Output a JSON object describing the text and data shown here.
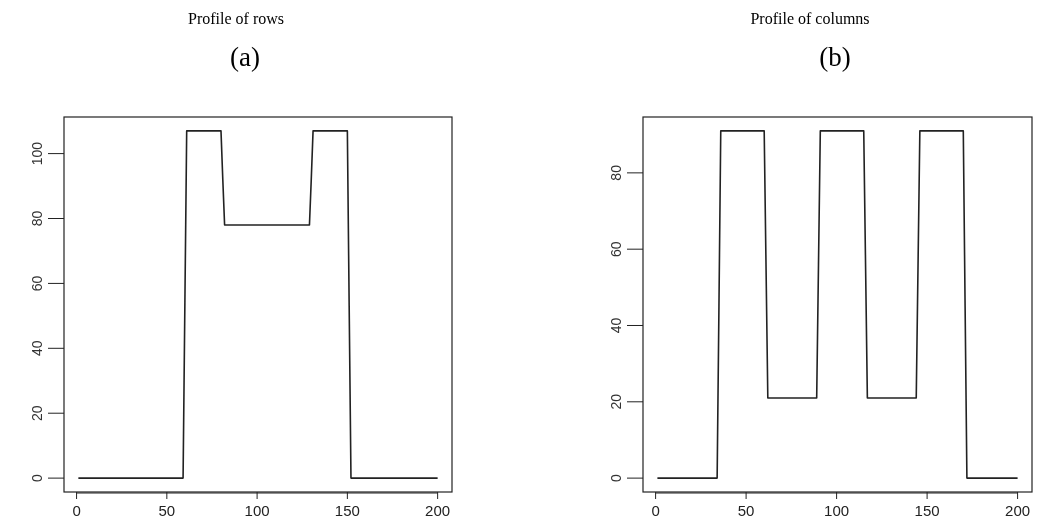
{
  "chart_data": [
    {
      "type": "line",
      "title": "Profile of rows",
      "subtitle": "(a)",
      "xlim": [
        -6.96,
        207.96
      ],
      "ylim": [
        -4.28,
        111.28
      ],
      "xticks": [
        0,
        50,
        100,
        150,
        200
      ],
      "yticks": [
        0,
        20,
        40,
        60,
        80,
        100
      ],
      "grid": false,
      "marker": "none",
      "line_style": "solid",
      "series": [
        {
          "color": "#222222",
          "x": [
            1,
            59,
            60,
            61,
            80,
            81,
            82,
            129,
            130,
            131,
            150,
            151,
            152,
            200
          ],
          "values": [
            0,
            0,
            54,
            107,
            107,
            92,
            78,
            78,
            92,
            107,
            107,
            53,
            0,
            0
          ]
        }
      ]
    },
    {
      "type": "line",
      "title": "Profile of columns",
      "subtitle": "(b)",
      "xlim": [
        -6.96,
        207.96
      ],
      "ylim": [
        -3.64,
        94.64
      ],
      "xticks": [
        0,
        50,
        100,
        150,
        200
      ],
      "yticks": [
        0,
        20,
        40,
        60,
        80
      ],
      "grid": false,
      "marker": "none",
      "line_style": "solid",
      "series": [
        {
          "color": "#222222",
          "x": [
            1,
            34,
            35,
            36,
            60,
            61,
            62,
            89,
            90,
            91,
            115,
            116,
            117,
            144,
            145,
            146,
            170,
            171,
            172,
            200
          ],
          "values": [
            0,
            0,
            45,
            91,
            91,
            56,
            21,
            21,
            56,
            91,
            91,
            56,
            21,
            21,
            56,
            91,
            91,
            45,
            0,
            0
          ]
        }
      ]
    }
  ]
}
